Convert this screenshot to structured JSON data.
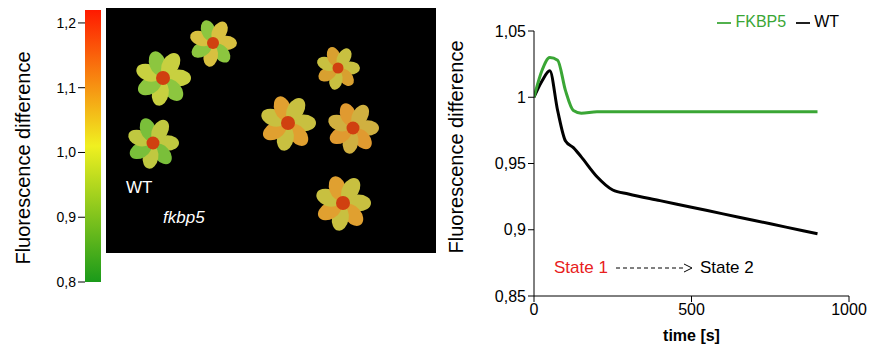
{
  "chart_data": [
    {
      "type": "image",
      "y_label": "Fluorescence difference",
      "labels": [
        "WT",
        "fkbp5"
      ],
      "colorbar_range": [
        0.8,
        1.22
      ],
      "colorbar_ticks": [
        {
          "value": 0.8,
          "label": "0,8"
        },
        {
          "value": 0.9,
          "label": "0,9"
        },
        {
          "value": 1.0,
          "label": "1,0"
        },
        {
          "value": 1.1,
          "label": "1,1"
        },
        {
          "value": 1.2,
          "label": "1,2"
        }
      ],
      "colorbar_colors": [
        "#1a9a1a",
        "#f0f020",
        "#ff1a00"
      ]
    },
    {
      "type": "line",
      "y_label": "Fluorescence difference",
      "x_label": "time [s]",
      "x": [
        0,
        25,
        50,
        75,
        100,
        125,
        150,
        200,
        250,
        300,
        400,
        500,
        600,
        700,
        800,
        900
      ],
      "series": [
        {
          "name": "WT",
          "color": "#000000",
          "values": [
            1.0,
            1.012,
            1.02,
            0.99,
            0.967,
            0.962,
            0.955,
            0.94,
            0.93,
            0.927,
            0.922,
            0.917,
            0.912,
            0.907,
            0.902,
            0.897
          ]
        },
        {
          "name": "FKBP5",
          "color": "#3aa635",
          "values": [
            1.0,
            1.02,
            1.03,
            1.028,
            1.005,
            0.99,
            0.988,
            0.989,
            0.989,
            0.989,
            0.989,
            0.989,
            0.989,
            0.989,
            0.989,
            0.989
          ]
        }
      ],
      "xlim": [
        0,
        1000
      ],
      "xticks": [
        0,
        500,
        1000
      ],
      "ylim": [
        0.85,
        1.05
      ],
      "yticks": [
        {
          "value": 0.85,
          "label": "0,85"
        },
        {
          "value": 0.9,
          "label": "0,9"
        },
        {
          "value": 0.95,
          "label": "0,95"
        },
        {
          "value": 1.0,
          "label": "1"
        },
        {
          "value": 1.05,
          "label": "1,05"
        }
      ],
      "legend": "top-right",
      "annotations": [
        {
          "text": "State 1",
          "color": "#e8201c"
        },
        {
          "text": "State 2",
          "color": "#000000"
        }
      ]
    }
  ]
}
